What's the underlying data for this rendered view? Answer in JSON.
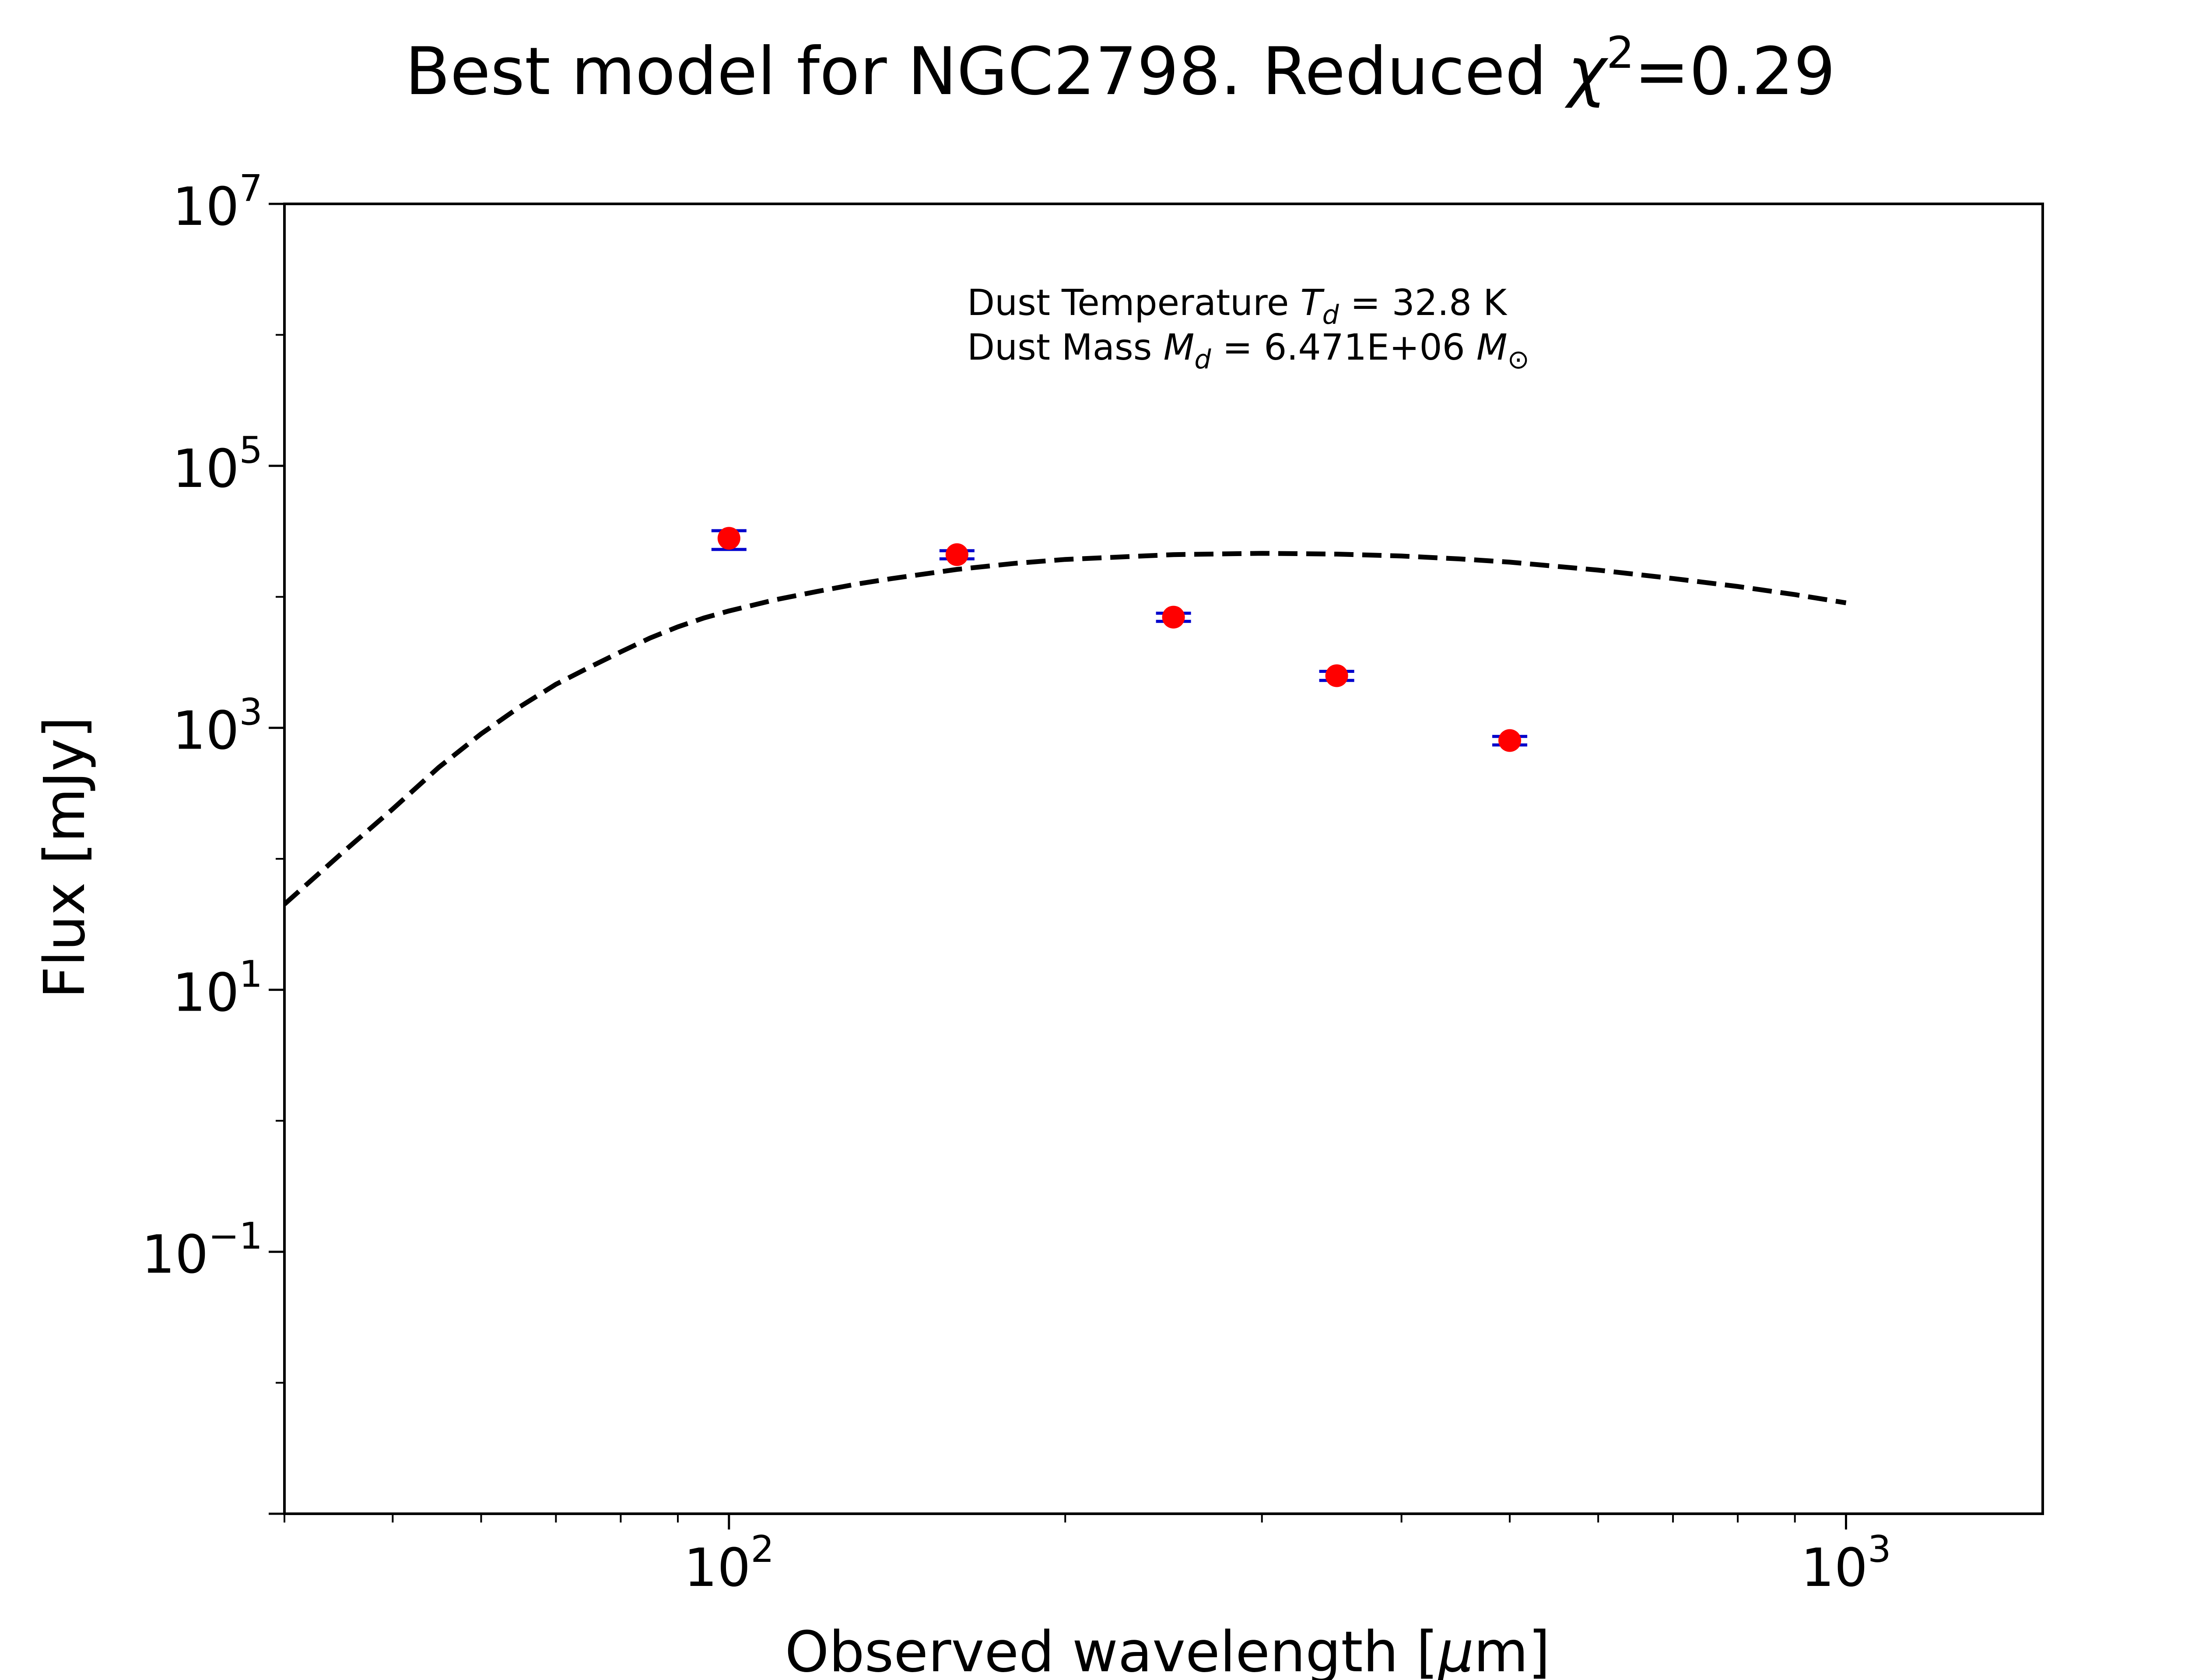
{
  "chart_data": {
    "type": "scatter",
    "title": {
      "prefix": "Best model for NGC2798. Reduced ",
      "chi": "χ",
      "chi_sup": "2",
      "suffix": "=0.29"
    },
    "xlabel": {
      "text": "Observed wavelength [",
      "mu": "μ",
      "unit": "m]"
    },
    "ylabel": "Flux [mJy]",
    "xscale": "log",
    "yscale": "log",
    "xlim": [
      40,
      1500
    ],
    "ylim": [
      0.001,
      10000000
    ],
    "x_ticks": [
      {
        "value": 100,
        "base": "10",
        "exp": "2"
      },
      {
        "value": 1000,
        "base": "10",
        "exp": "3"
      }
    ],
    "y_ticks": [
      {
        "value": 0.1,
        "base": "10",
        "exp": "−1"
      },
      {
        "value": 10,
        "base": "10",
        "exp": "1"
      },
      {
        "value": 1000,
        "base": "10",
        "exp": "3"
      },
      {
        "value": 100000,
        "base": "10",
        "exp": "5"
      },
      {
        "value": 10000000,
        "base": "10",
        "exp": "7"
      }
    ],
    "grid": false,
    "series": [
      {
        "kind": "model",
        "line_style": "dashed",
        "color": "#000000",
        "x": [
          40,
          45,
          50,
          55,
          60,
          65,
          70,
          75,
          80,
          85,
          90,
          95,
          100,
          110,
          120,
          130,
          140,
          160,
          180,
          200,
          250,
          300,
          350,
          400,
          450,
          500,
          600,
          700,
          800,
          900,
          1000
        ],
        "y": [
          45,
          110,
          240,
          500,
          900,
          1450,
          2150,
          2900,
          3800,
          4850,
          5900,
          6900,
          7800,
          9500,
          11000,
          12500,
          13800,
          16200,
          18000,
          19300,
          21000,
          21500,
          21200,
          20500,
          19500,
          18400,
          16000,
          13800,
          12000,
          10400,
          9000
        ]
      },
      {
        "kind": "observed",
        "marker": "circle",
        "color": "#ff0000",
        "error_color": "#0000cc",
        "x": [
          100,
          160,
          250,
          350,
          500
        ],
        "y": [
          28000,
          21000,
          7000,
          2500,
          800
        ],
        "yerr_low": [
          5000,
          1500,
          500,
          200,
          60
        ],
        "yerr_high": [
          4000,
          1500,
          500,
          200,
          60
        ]
      }
    ],
    "annotation": {
      "line1_prefix": "Dust Temperature ",
      "line1_sym": "T",
      "line1_sub": "d",
      "line1_suffix": " = 32.8 K",
      "line2_prefix": "Dust Mass ",
      "line2_sym": "M",
      "line2_sub": "d",
      "line2_mid": " = 6.471E+06 ",
      "line2_sym2": "M",
      "line2_sub2": "⊙"
    }
  }
}
